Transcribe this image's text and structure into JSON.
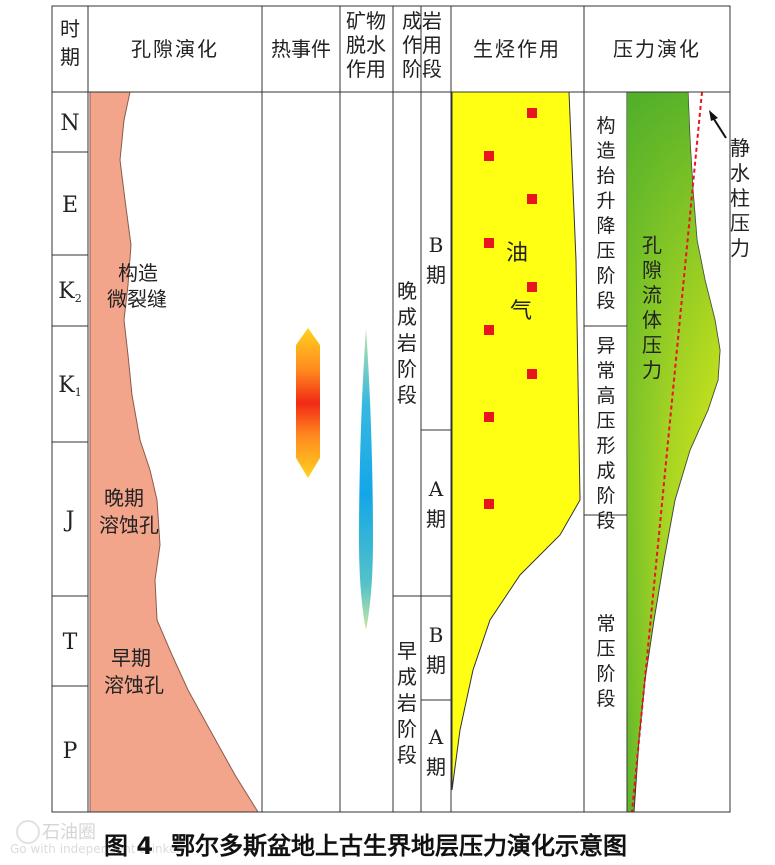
{
  "headers": {
    "period": "时期",
    "pore_evolution": "孔隙演化",
    "thermal_event": "热事件",
    "mineral_dehydration": "矿物脱水作用",
    "diagenesis_stage": "成岩作用阶段",
    "hydrocarbon_generation": "生烃作用",
    "pressure_evolution": "压力演化"
  },
  "periods": [
    "N",
    "E",
    "K2",
    "K1",
    "J",
    "T",
    "P"
  ],
  "pore_labels": {
    "micro_fractures": [
      "构造",
      "微裂缝"
    ],
    "late_dissolution": [
      "晚期",
      "溶蚀孔"
    ],
    "early_dissolution": [
      "早期",
      "溶蚀孔"
    ]
  },
  "diagenesis": {
    "late_stage": "晚成岩阶段",
    "early_stage": "早成岩阶段",
    "late_B": "B期",
    "late_A": "A期",
    "early_B": "B期",
    "early_A": "A期"
  },
  "hydrocarbon": {
    "oil": "油",
    "gas": "气"
  },
  "pressure_stages": {
    "tectonic_uplift": "构造抬升降压阶段",
    "overpressure": "异常高压形成阶段",
    "normal": "常压阶段"
  },
  "pressure_curves": {
    "pore_fluid": "孔隙流体压力",
    "hydrostatic": "静水柱压力"
  },
  "colors": {
    "pore": "#f3a58c",
    "oil_fill": "#ffff14",
    "marker": "#e8141e",
    "pressure_green": "#5db82e",
    "pressure_yellow": "#ecf016",
    "hydrostatic_line": "#e8141e"
  },
  "caption": {
    "number": "图 4",
    "text": "鄂尔多斯盆地上古生界地层压力演化示意图"
  },
  "watermark": {
    "name": "石油圈",
    "slogan": "Go with independent thinker"
  }
}
